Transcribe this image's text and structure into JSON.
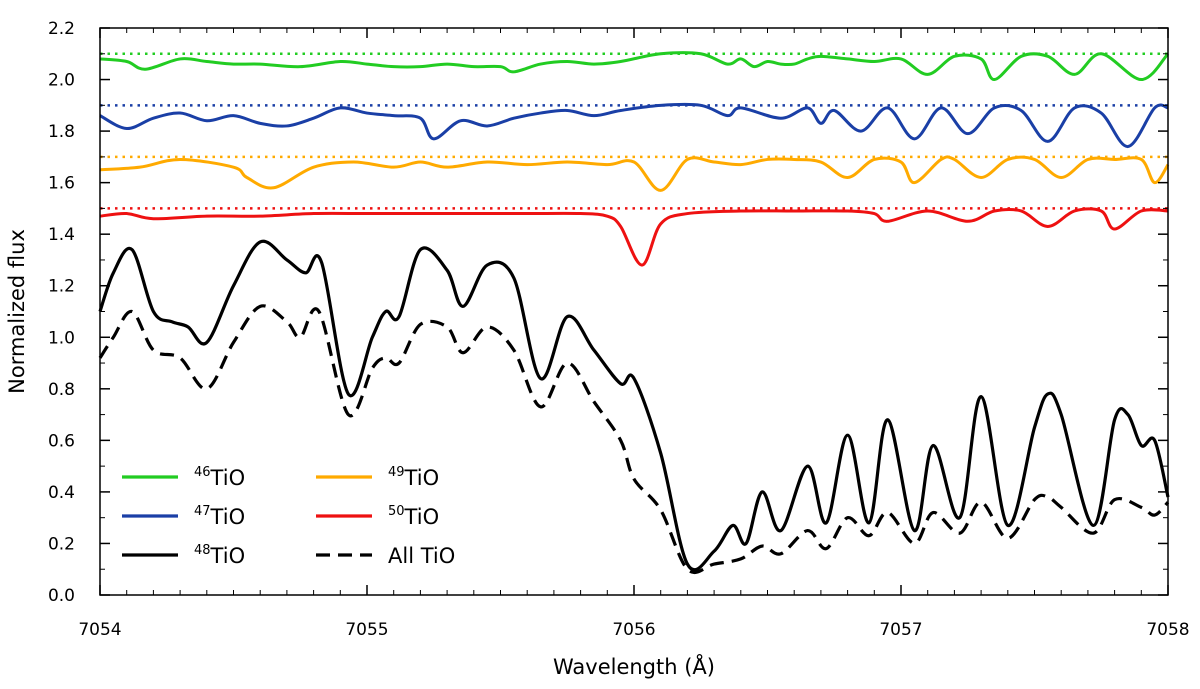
{
  "chart_data": {
    "type": "line",
    "title": "",
    "xlabel": "Wavelength (Å)",
    "ylabel": "Normalized flux",
    "xlim": [
      7054,
      7058
    ],
    "ylim": [
      0.0,
      2.2
    ],
    "xticks": [
      7054,
      7055,
      7056,
      7057,
      7058
    ],
    "xtick_labels": [
      "7054",
      "7055",
      "7056",
      "7057",
      "7058"
    ],
    "yticks": [
      0.0,
      0.2,
      0.4,
      0.6,
      0.8,
      1.0,
      1.2,
      1.4,
      1.6,
      1.8,
      2.0,
      2.2
    ],
    "ytick_labels": [
      "0.0",
      "0.2",
      "0.4",
      "0.6",
      "0.8",
      "1.0",
      "1.2",
      "1.4",
      "1.6",
      "1.8",
      "2.0",
      "2.2"
    ],
    "grid": false,
    "legend_position": "bottom-left",
    "reference_lines": [
      {
        "name": "46TiO continuum",
        "y": 2.1,
        "color": "#22cc22",
        "style": "dotted"
      },
      {
        "name": "47TiO continuum",
        "y": 1.9,
        "color": "#1a3fa6",
        "style": "dotted"
      },
      {
        "name": "49TiO continuum",
        "y": 1.7,
        "color": "#ffaa00",
        "style": "dotted"
      },
      {
        "name": "50TiO continuum",
        "y": 1.5,
        "color": "#ee1111",
        "style": "dotted"
      }
    ],
    "series": [
      {
        "name": "46TiO",
        "sup": "46",
        "base": "TiO",
        "color": "#22cc22",
        "style": "solid",
        "x": [
          7054.0,
          7054.1,
          7054.17,
          7054.3,
          7054.4,
          7054.5,
          7054.6,
          7054.75,
          7054.9,
          7055.0,
          7055.1,
          7055.2,
          7055.3,
          7055.4,
          7055.5,
          7055.55,
          7055.65,
          7055.75,
          7055.85,
          7055.95,
          7056.1,
          7056.25,
          7056.35,
          7056.4,
          7056.45,
          7056.5,
          7056.55,
          7056.6,
          7056.65,
          7056.7,
          7056.8,
          7056.9,
          7057.0,
          7057.1,
          7057.2,
          7057.3,
          7057.35,
          7057.45,
          7057.55,
          7057.65,
          7057.75,
          7057.9,
          7058.0
        ],
        "y": [
          2.08,
          2.07,
          2.04,
          2.08,
          2.07,
          2.06,
          2.06,
          2.05,
          2.07,
          2.06,
          2.05,
          2.05,
          2.06,
          2.05,
          2.05,
          2.03,
          2.06,
          2.07,
          2.06,
          2.07,
          2.1,
          2.1,
          2.06,
          2.08,
          2.05,
          2.07,
          2.06,
          2.06,
          2.08,
          2.09,
          2.08,
          2.07,
          2.08,
          2.02,
          2.09,
          2.08,
          2.0,
          2.09,
          2.09,
          2.02,
          2.1,
          2.0,
          2.1
        ]
      },
      {
        "name": "47TiO",
        "sup": "47",
        "base": "TiO",
        "color": "#1a3fa6",
        "style": "solid",
        "x": [
          7054.0,
          7054.1,
          7054.2,
          7054.3,
          7054.4,
          7054.5,
          7054.6,
          7054.7,
          7054.8,
          7054.9,
          7055.0,
          7055.1,
          7055.2,
          7055.25,
          7055.35,
          7055.45,
          7055.55,
          7055.65,
          7055.75,
          7055.85,
          7055.95,
          7056.1,
          7056.25,
          7056.35,
          7056.4,
          7056.55,
          7056.65,
          7056.7,
          7056.75,
          7056.85,
          7056.95,
          7057.05,
          7057.15,
          7057.25,
          7057.35,
          7057.45,
          7057.55,
          7057.65,
          7057.75,
          7057.85,
          7057.95,
          7058.0
        ],
        "y": [
          1.86,
          1.81,
          1.85,
          1.87,
          1.84,
          1.86,
          1.83,
          1.82,
          1.85,
          1.89,
          1.87,
          1.86,
          1.85,
          1.77,
          1.84,
          1.82,
          1.85,
          1.87,
          1.88,
          1.86,
          1.88,
          1.9,
          1.9,
          1.86,
          1.89,
          1.85,
          1.89,
          1.83,
          1.88,
          1.8,
          1.89,
          1.77,
          1.89,
          1.79,
          1.89,
          1.88,
          1.76,
          1.89,
          1.87,
          1.74,
          1.89,
          1.89
        ]
      },
      {
        "name": "49TiO",
        "sup": "49",
        "base": "TiO",
        "color": "#ffaa00",
        "style": "solid",
        "x": [
          7054.0,
          7054.15,
          7054.3,
          7054.5,
          7054.55,
          7054.65,
          7054.8,
          7054.95,
          7055.1,
          7055.2,
          7055.3,
          7055.45,
          7055.6,
          7055.75,
          7055.9,
          7056.0,
          7056.1,
          7056.2,
          7056.3,
          7056.4,
          7056.5,
          7056.6,
          7056.7,
          7056.8,
          7056.9,
          7057.0,
          7057.05,
          7057.15,
          7057.2,
          7057.3,
          7057.4,
          7057.5,
          7057.6,
          7057.7,
          7057.8,
          7057.9,
          7057.95,
          7058.0
        ],
        "y": [
          1.65,
          1.66,
          1.69,
          1.66,
          1.62,
          1.58,
          1.66,
          1.68,
          1.66,
          1.68,
          1.66,
          1.68,
          1.67,
          1.68,
          1.67,
          1.68,
          1.57,
          1.69,
          1.68,
          1.67,
          1.69,
          1.69,
          1.68,
          1.62,
          1.69,
          1.68,
          1.6,
          1.69,
          1.69,
          1.62,
          1.69,
          1.69,
          1.62,
          1.69,
          1.69,
          1.69,
          1.6,
          1.67
        ]
      },
      {
        "name": "50TiO",
        "sup": "50",
        "base": "TiO",
        "color": "#ee1111",
        "style": "solid",
        "x": [
          7054.0,
          7054.1,
          7054.2,
          7054.4,
          7054.6,
          7054.8,
          7055.0,
          7055.2,
          7055.4,
          7055.6,
          7055.8,
          7055.9,
          7055.95,
          7056.03,
          7056.1,
          7056.2,
          7056.4,
          7056.6,
          7056.8,
          7056.9,
          7056.95,
          7057.1,
          7057.25,
          7057.35,
          7057.45,
          7057.55,
          7057.65,
          7057.75,
          7057.8,
          7057.9,
          7058.0
        ],
        "y": [
          1.47,
          1.48,
          1.46,
          1.47,
          1.47,
          1.48,
          1.48,
          1.48,
          1.48,
          1.48,
          1.48,
          1.47,
          1.43,
          1.28,
          1.44,
          1.48,
          1.49,
          1.49,
          1.49,
          1.48,
          1.45,
          1.49,
          1.45,
          1.49,
          1.49,
          1.43,
          1.49,
          1.49,
          1.42,
          1.49,
          1.49
        ]
      },
      {
        "name": "48TiO",
        "sup": "48",
        "base": "TiO",
        "color": "#000000",
        "style": "solid",
        "x": [
          7054.0,
          7054.05,
          7054.12,
          7054.2,
          7054.27,
          7054.33,
          7054.4,
          7054.5,
          7054.6,
          7054.7,
          7054.77,
          7054.83,
          7054.93,
          7055.02,
          7055.07,
          7055.12,
          7055.2,
          7055.3,
          7055.36,
          7055.45,
          7055.55,
          7055.65,
          7055.75,
          7055.85,
          7055.95,
          7056.0,
          7056.1,
          7056.2,
          7056.3,
          7056.37,
          7056.42,
          7056.48,
          7056.55,
          7056.65,
          7056.72,
          7056.8,
          7056.88,
          7056.95,
          7057.05,
          7057.12,
          7057.22,
          7057.3,
          7057.4,
          7057.5,
          7057.55,
          7057.6,
          7057.72,
          7057.8,
          7057.85,
          7057.9,
          7057.95,
          7058.0
        ],
        "y": [
          1.1,
          1.25,
          1.34,
          1.1,
          1.06,
          1.04,
          0.98,
          1.2,
          1.37,
          1.3,
          1.25,
          1.29,
          0.78,
          1.0,
          1.1,
          1.08,
          1.34,
          1.26,
          1.12,
          1.28,
          1.23,
          0.84,
          1.08,
          0.95,
          0.82,
          0.84,
          0.55,
          0.12,
          0.17,
          0.27,
          0.2,
          0.4,
          0.25,
          0.5,
          0.28,
          0.62,
          0.28,
          0.68,
          0.25,
          0.58,
          0.3,
          0.77,
          0.27,
          0.65,
          0.78,
          0.7,
          0.27,
          0.68,
          0.7,
          0.58,
          0.6,
          0.38
        ]
      },
      {
        "name": "All TiO",
        "sup": "",
        "base": "All TiO",
        "color": "#000000",
        "style": "dashed",
        "x": [
          7054.0,
          7054.05,
          7054.12,
          7054.2,
          7054.3,
          7054.4,
          7054.5,
          7054.6,
          7054.7,
          7054.75,
          7054.82,
          7054.93,
          7055.02,
          7055.07,
          7055.12,
          7055.2,
          7055.3,
          7055.36,
          7055.45,
          7055.55,
          7055.65,
          7055.75,
          7055.85,
          7055.95,
          7056.0,
          7056.1,
          7056.2,
          7056.3,
          7056.4,
          7056.48,
          7056.55,
          7056.65,
          7056.72,
          7056.8,
          7056.88,
          7056.95,
          7057.05,
          7057.12,
          7057.22,
          7057.3,
          7057.4,
          7057.5,
          7057.55,
          7057.6,
          7057.72,
          7057.8,
          7057.9,
          7057.95,
          7058.0
        ],
        "y": [
          0.92,
          1.0,
          1.1,
          0.95,
          0.92,
          0.8,
          0.98,
          1.12,
          1.06,
          1.0,
          1.1,
          0.7,
          0.88,
          0.92,
          0.9,
          1.05,
          1.04,
          0.94,
          1.04,
          0.95,
          0.73,
          0.9,
          0.75,
          0.6,
          0.45,
          0.33,
          0.1,
          0.12,
          0.14,
          0.19,
          0.16,
          0.25,
          0.18,
          0.3,
          0.23,
          0.32,
          0.2,
          0.32,
          0.24,
          0.36,
          0.22,
          0.37,
          0.38,
          0.34,
          0.24,
          0.37,
          0.34,
          0.31,
          0.36
        ]
      }
    ],
    "legend": [
      {
        "series": "46TiO",
        "column": 0,
        "row": 0
      },
      {
        "series": "47TiO",
        "column": 0,
        "row": 1
      },
      {
        "series": "48TiO",
        "column": 0,
        "row": 2
      },
      {
        "series": "49TiO",
        "column": 1,
        "row": 0
      },
      {
        "series": "50TiO",
        "column": 1,
        "row": 1
      },
      {
        "series": "All TiO",
        "column": 1,
        "row": 2
      }
    ]
  }
}
